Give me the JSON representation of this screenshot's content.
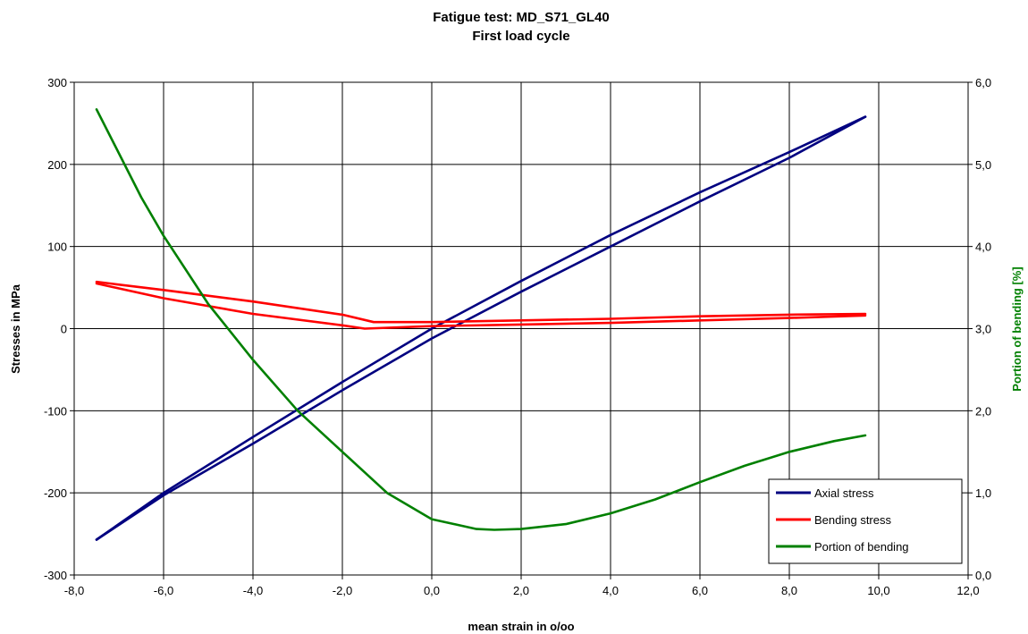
{
  "chart_data": {
    "type": "line",
    "title": "Fatigue test: MD_S71_GL40",
    "subtitle": "First load cycle",
    "xlabel": "mean strain in o/oo",
    "ylabel": "Stresses in MPa",
    "y2label": "Portion of bending [%]",
    "xlim": [
      -8,
      12
    ],
    "ylim": [
      -300,
      300
    ],
    "y2lim": [
      0,
      6
    ],
    "x_ticks": [
      "-8,0",
      "-6,0",
      "-4,0",
      "-2,0",
      "0,0",
      "2,0",
      "4,0",
      "6,0",
      "8,0",
      "10,0",
      "12,0"
    ],
    "y_ticks": [
      "-300",
      "-200",
      "-100",
      "0",
      "100",
      "200",
      "300"
    ],
    "y2_ticks": [
      "0,0",
      "1,0",
      "2,0",
      "3,0",
      "4,0",
      "5,0",
      "6,0"
    ],
    "grid": true,
    "legend_position": "bottom-right",
    "series": [
      {
        "name": "Axial stress",
        "axis": "left",
        "color": "#000080",
        "loading": [
          [
            -7.5,
            -257
          ],
          [
            -6,
            -200
          ],
          [
            -4,
            -132
          ],
          [
            -2,
            -65
          ],
          [
            0,
            0
          ],
          [
            2,
            58
          ],
          [
            4,
            114
          ],
          [
            6,
            166
          ],
          [
            8,
            215
          ],
          [
            9.7,
            258
          ]
        ],
        "unloading": [
          [
            9.7,
            258
          ],
          [
            8,
            208
          ],
          [
            6,
            155
          ],
          [
            4,
            100
          ],
          [
            2,
            45
          ],
          [
            0,
            -12
          ],
          [
            -2,
            -75
          ],
          [
            -4,
            -140
          ],
          [
            -6,
            -203
          ],
          [
            -7.5,
            -257
          ]
        ]
      },
      {
        "name": "Bending stress",
        "axis": "left",
        "color": "#ff0000",
        "loading": [
          [
            -7.5,
            57
          ],
          [
            -6,
            47
          ],
          [
            -4,
            33
          ],
          [
            -2,
            17
          ],
          [
            -1.3,
            8
          ],
          [
            0,
            8
          ],
          [
            2,
            10
          ],
          [
            4,
            12
          ],
          [
            6,
            15
          ],
          [
            8,
            17
          ],
          [
            9.7,
            18
          ]
        ],
        "unloading": [
          [
            9.7,
            16
          ],
          [
            8,
            13
          ],
          [
            6,
            10
          ],
          [
            4,
            7
          ],
          [
            2,
            5
          ],
          [
            0,
            3
          ],
          [
            -1.5,
            0
          ],
          [
            -2,
            4
          ],
          [
            -4,
            18
          ],
          [
            -6,
            37
          ],
          [
            -7.5,
            55
          ]
        ]
      },
      {
        "name": "Portion of bending",
        "axis": "right",
        "color": "#008000",
        "points": [
          [
            -7.5,
            5.67
          ],
          [
            -6.5,
            4.6
          ],
          [
            -6,
            4.13
          ],
          [
            -5,
            3.3
          ],
          [
            -4,
            2.62
          ],
          [
            -3,
            2.0
          ],
          [
            -2,
            1.5
          ],
          [
            -1,
            1.0
          ],
          [
            0,
            0.68
          ],
          [
            1,
            0.56
          ],
          [
            1.4,
            0.55
          ],
          [
            2,
            0.56
          ],
          [
            3,
            0.62
          ],
          [
            4,
            0.75
          ],
          [
            5,
            0.92
          ],
          [
            6,
            1.13
          ],
          [
            7,
            1.33
          ],
          [
            8,
            1.5
          ],
          [
            9,
            1.63
          ],
          [
            9.7,
            1.7
          ]
        ]
      }
    ]
  }
}
